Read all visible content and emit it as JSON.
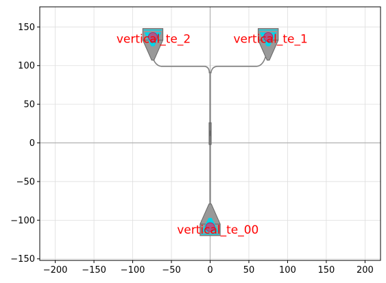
{
  "chart_data": {
    "type": "scatter",
    "title": "",
    "xlabel": "",
    "ylabel": "",
    "xlim": [
      -220,
      220
    ],
    "ylim": [
      -152,
      176
    ],
    "xticks": [
      -200,
      -150,
      -100,
      -50,
      0,
      50,
      100,
      150,
      200
    ],
    "yticks": [
      -150,
      -100,
      -50,
      0,
      50,
      100,
      150
    ],
    "grid": true,
    "axis_lines_at_zero": true,
    "labels": [
      {
        "text": "vertical_te_2",
        "x": -73,
        "y": 135
      },
      {
        "text": "vertical_te_1",
        "x": 78,
        "y": 135
      },
      {
        "text": "vertical_te_00",
        "x": 10,
        "y": -112
      }
    ],
    "ports": [
      {
        "name": "vertical_te_2",
        "x": -74,
        "y": 137
      },
      {
        "name": "vertical_te_1",
        "x": 75,
        "y": 137
      },
      {
        "name": "vertical_te_00",
        "x": 0,
        "y": -109
      }
    ],
    "colors": {
      "waveguide": "#7f7f7f",
      "taper_fill": "#999999",
      "grating": "#00d5e8",
      "port_marker": "#e0306a",
      "label": "#ff0000",
      "grid": "#dddddd",
      "zero_line": "#b0b0b0"
    }
  }
}
